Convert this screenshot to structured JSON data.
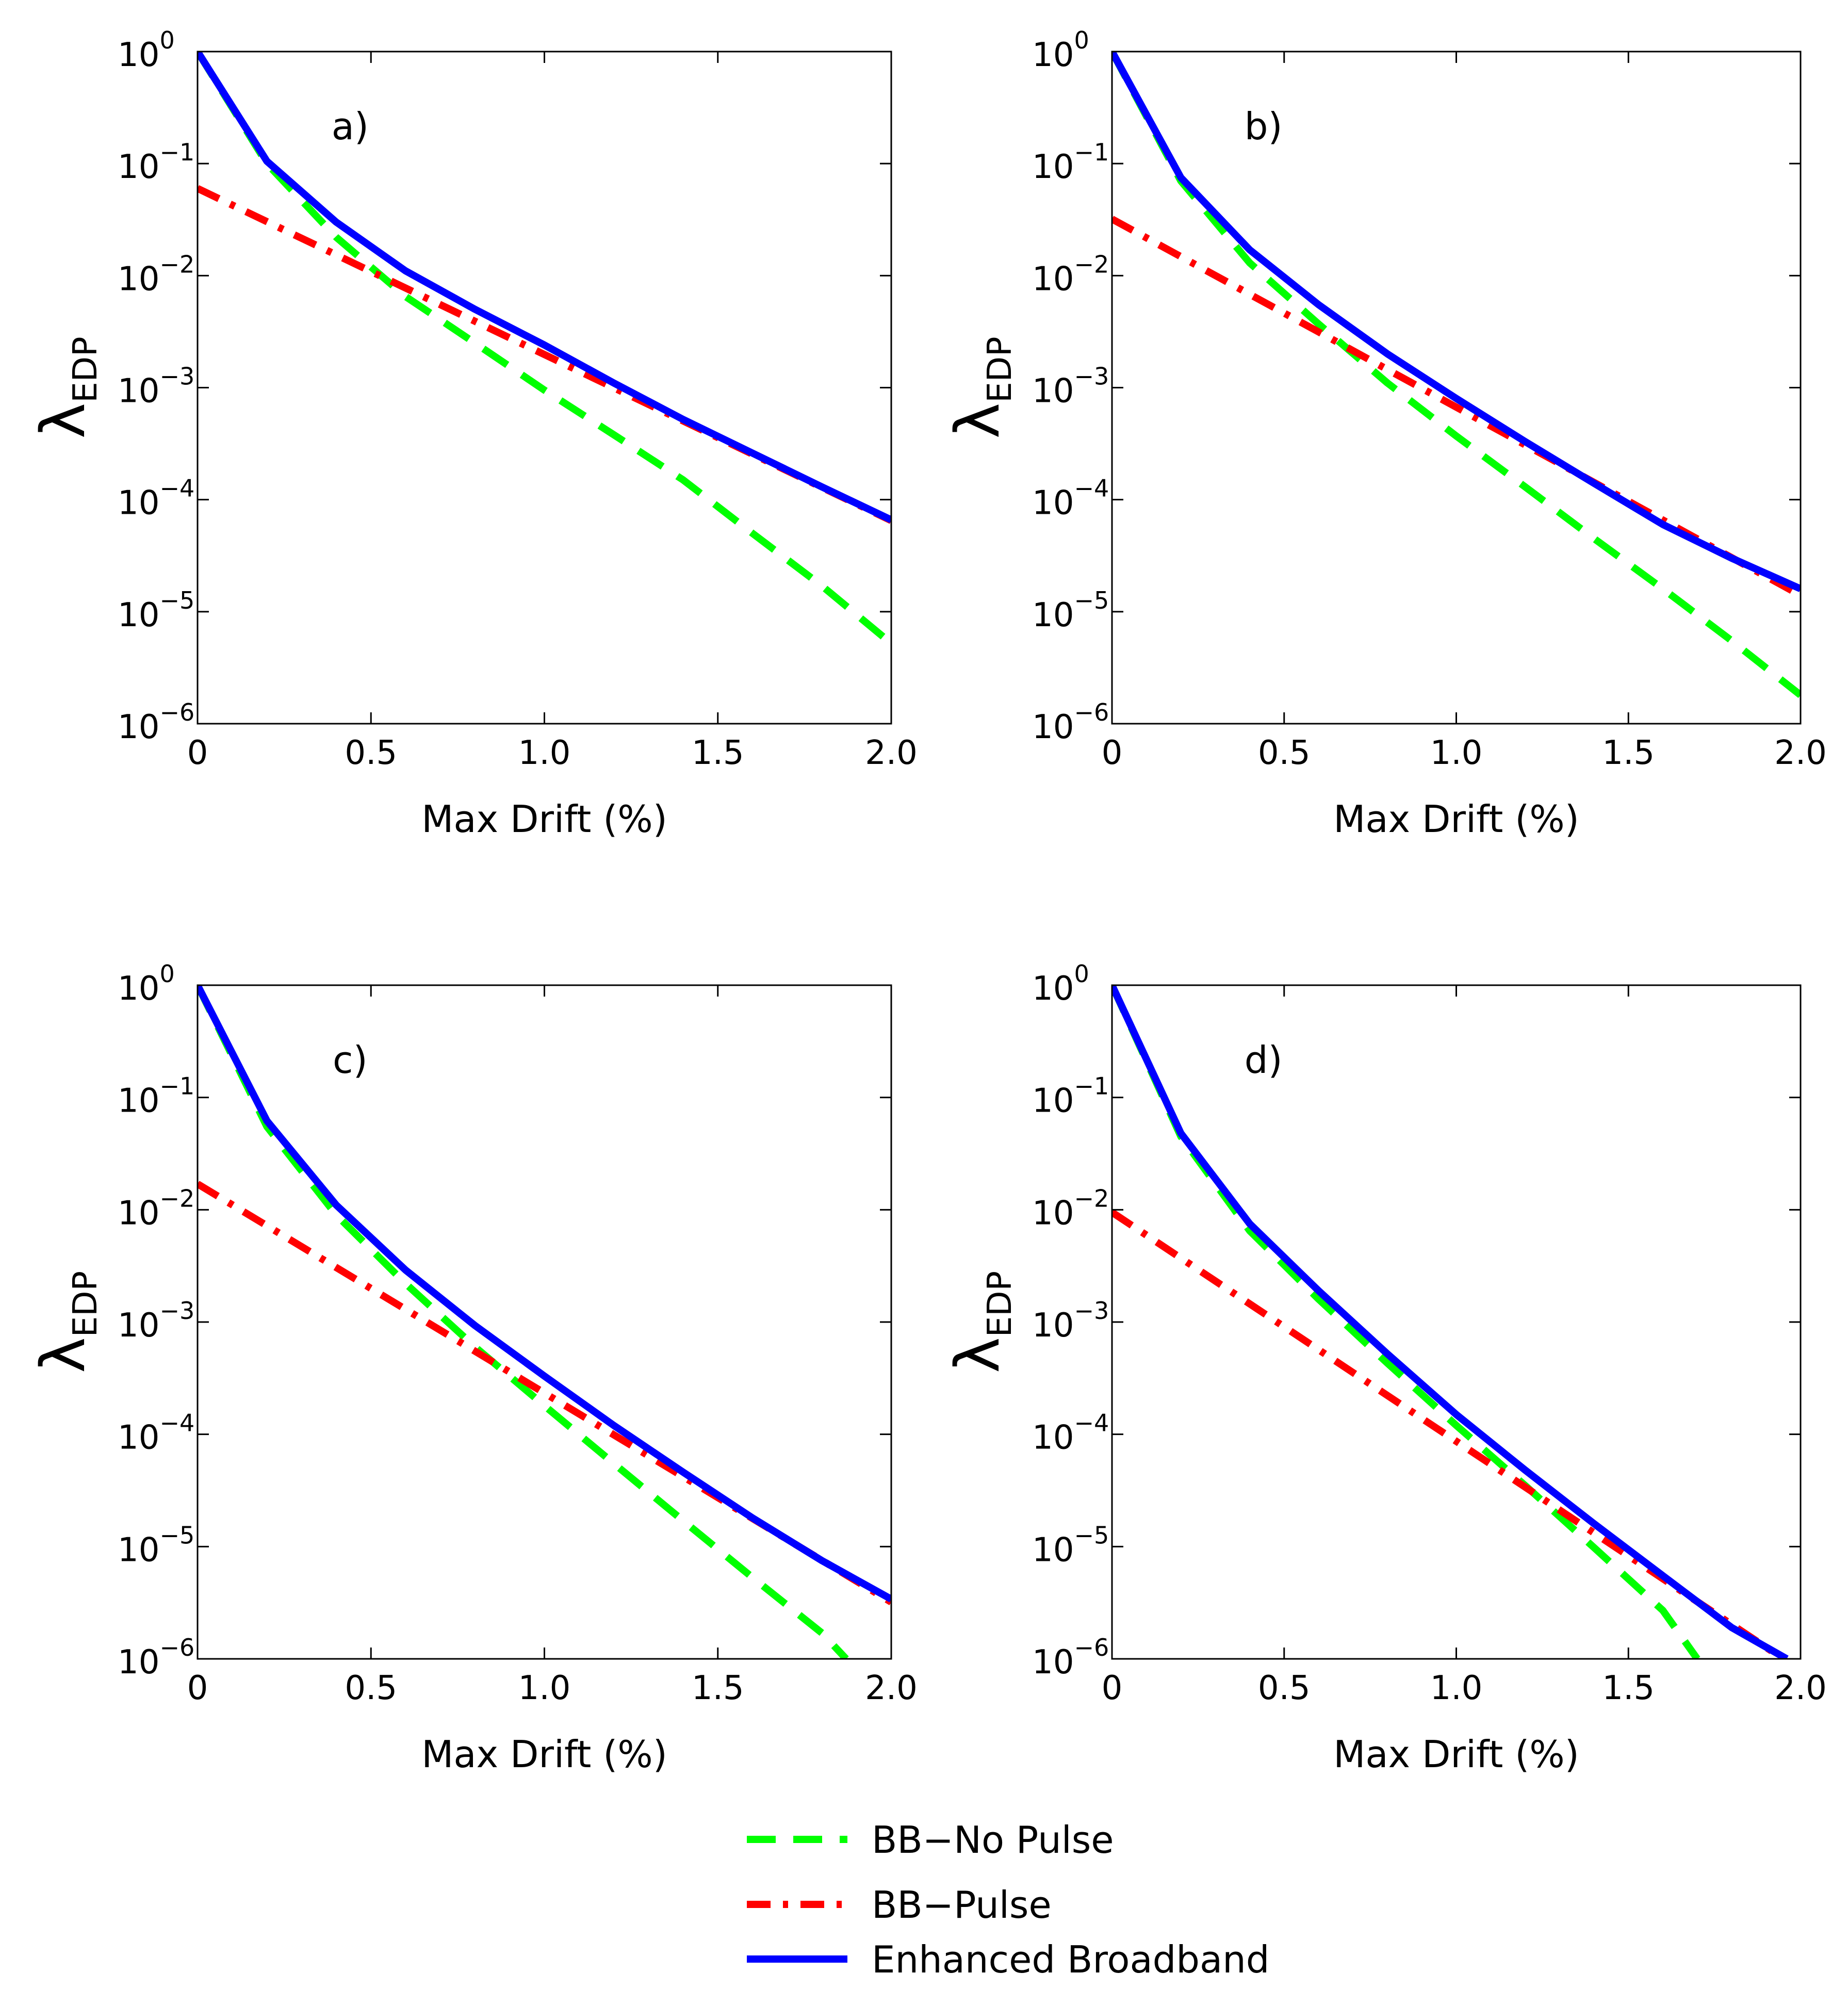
{
  "chart_data": {
    "type": "line",
    "y_scale": "log",
    "grid": false,
    "legend_position": "bottom-center",
    "legend": [
      {
        "key": "no_pulse",
        "label": "BB−No Pulse",
        "color": "#00ff00",
        "style": "dashed"
      },
      {
        "key": "pulse",
        "label": "BB−Pulse",
        "color": "#ff0000",
        "style": "dash-dot"
      },
      {
        "key": "enhanced",
        "label": "Enhanced Broadband",
        "color": "#0000ff",
        "style": "solid"
      }
    ],
    "panels": [
      {
        "label": "a)",
        "xlabel": "Max Drift (%)",
        "ylabel": "λ",
        "ylabel_sub": "EDP",
        "xlim": [
          0,
          2.0
        ],
        "ylim": [
          1e-06,
          1
        ],
        "xticks": [
          0,
          0.5,
          1.0,
          1.5,
          2.0
        ],
        "xtick_labels": [
          "0",
          "0.5",
          "1.0",
          "1.5",
          "2.0"
        ],
        "yticks": [
          1,
          0.1,
          0.01,
          0.001,
          0.0001,
          1e-05,
          1e-06
        ],
        "ytick_bases": [
          "10",
          "10",
          "10",
          "10",
          "10",
          "10",
          "10"
        ],
        "ytick_exponents": [
          "0",
          "−1",
          "−2",
          "−3",
          "−4",
          "−5",
          "−6"
        ],
        "series": [
          {
            "key": "no_pulse",
            "x": [
              0,
              0.2,
              0.4,
              0.6,
              0.8,
              1.0,
              1.2,
              1.4,
              1.6,
              1.8,
              2.0
            ],
            "y": [
              1,
              0.1,
              0.022,
              0.0065,
              0.0025,
              0.00095,
              0.00038,
              0.00015,
              5e-05,
              1.7e-05,
              5.2e-06
            ]
          },
          {
            "key": "pulse",
            "x": [
              0,
              2.0
            ],
            "y": [
              0.06,
              6.5e-05
            ]
          },
          {
            "key": "enhanced",
            "x": [
              0,
              0.2,
              0.4,
              0.6,
              0.8,
              1.0,
              1.2,
              1.4,
              1.6,
              1.8,
              2.0
            ],
            "y": [
              1,
              0.105,
              0.03,
              0.011,
              0.005,
              0.0024,
              0.0011,
              0.00052,
              0.00026,
              0.00013,
              6.6e-05
            ]
          }
        ]
      },
      {
        "label": "b)",
        "xlabel": "Max Drift (%)",
        "ylabel": "λ",
        "ylabel_sub": "EDP",
        "xlim": [
          0,
          2.0
        ],
        "ylim": [
          1e-06,
          1
        ],
        "xticks": [
          0,
          0.5,
          1.0,
          1.5,
          2.0
        ],
        "xtick_labels": [
          "0",
          "0.5",
          "1.0",
          "1.5",
          "2.0"
        ],
        "yticks": [
          1,
          0.1,
          0.01,
          0.001,
          0.0001,
          1e-05,
          1e-06
        ],
        "ytick_bases": [
          "10",
          "10",
          "10",
          "10",
          "10",
          "10",
          "10"
        ],
        "ytick_exponents": [
          "0",
          "−1",
          "−2",
          "−3",
          "−4",
          "−5",
          "−6"
        ],
        "series": [
          {
            "key": "no_pulse",
            "x": [
              0,
              0.2,
              0.4,
              0.6,
              0.8,
              1.0,
              1.2,
              1.4,
              1.6,
              1.8,
              2.0
            ],
            "y": [
              1,
              0.07,
              0.013,
              0.0037,
              0.0011,
              0.00037,
              0.00013,
              4.5e-05,
              1.6e-05,
              5.5e-06,
              1.8e-06
            ]
          },
          {
            "key": "pulse",
            "x": [
              0,
              2.0
            ],
            "y": [
              0.032,
              1.4e-05
            ]
          },
          {
            "key": "enhanced",
            "x": [
              0,
              0.2,
              0.4,
              0.6,
              0.8,
              1.0,
              1.2,
              1.4,
              1.6,
              1.8,
              2.0
            ],
            "y": [
              1,
              0.075,
              0.017,
              0.0055,
              0.002,
              0.0008,
              0.00033,
              0.00014,
              6e-05,
              3e-05,
              1.6e-05
            ]
          }
        ]
      },
      {
        "label": "c)",
        "xlabel": "Max Drift (%)",
        "ylabel": "λ",
        "ylabel_sub": "EDP",
        "xlim": [
          0,
          2.0
        ],
        "ylim": [
          1e-06,
          1
        ],
        "xticks": [
          0,
          0.5,
          1.0,
          1.5,
          2.0
        ],
        "xtick_labels": [
          "0",
          "0.5",
          "1.0",
          "1.5",
          "2.0"
        ],
        "yticks": [
          1,
          0.1,
          0.01,
          0.001,
          0.0001,
          1e-05,
          1e-06
        ],
        "ytick_bases": [
          "10",
          "10",
          "10",
          "10",
          "10",
          "10",
          "10"
        ],
        "ytick_exponents": [
          "0",
          "−1",
          "−2",
          "−3",
          "−4",
          "−5",
          "−6"
        ],
        "series": [
          {
            "key": "no_pulse",
            "x": [
              0,
              0.2,
              0.4,
              0.6,
              0.8,
              1.0,
              1.2,
              1.4,
              1.6,
              1.8,
              1.87
            ],
            "y": [
              1,
              0.055,
              0.009,
              0.0022,
              0.0006,
              0.00018,
              5.5e-05,
              1.7e-05,
              5.3e-06,
              1.7e-06,
              1e-06
            ]
          },
          {
            "key": "pulse",
            "x": [
              0,
              2.0
            ],
            "y": [
              0.017,
              3.2e-06
            ]
          },
          {
            "key": "enhanced",
            "x": [
              0,
              0.2,
              0.4,
              0.6,
              0.8,
              1.0,
              1.2,
              1.4,
              1.6,
              1.8,
              2.0
            ],
            "y": [
              1,
              0.062,
              0.011,
              0.0029,
              0.00093,
              0.00033,
              0.00012,
              4.6e-05,
              1.8e-05,
              7.5e-06,
              3.4e-06
            ]
          }
        ]
      },
      {
        "label": "d)",
        "xlabel": "Max Drift (%)",
        "ylabel": "λ",
        "ylabel_sub": "EDP",
        "xlim": [
          0,
          2.0
        ],
        "ylim": [
          1e-06,
          1
        ],
        "xticks": [
          0,
          0.5,
          1.0,
          1.5,
          2.0
        ],
        "xtick_labels": [
          "0",
          "0.5",
          "1.0",
          "1.5",
          "2.0"
        ],
        "yticks": [
          1,
          0.1,
          0.01,
          0.001,
          0.0001,
          1e-05,
          1e-06
        ],
        "ytick_bases": [
          "10",
          "10",
          "10",
          "10",
          "10",
          "10",
          "10"
        ],
        "ytick_exponents": [
          "0",
          "−1",
          "−2",
          "−3",
          "−4",
          "−5",
          "−6"
        ],
        "series": [
          {
            "key": "no_pulse",
            "x": [
              0,
              0.2,
              0.4,
              0.6,
              0.8,
              1.0,
              1.2,
              1.4,
              1.6,
              1.7
            ],
            "y": [
              1,
              0.045,
              0.0065,
              0.0016,
              0.00043,
              0.00012,
              3.5e-05,
              9.8e-06,
              2.7e-06,
              1e-06
            ]
          },
          {
            "key": "pulse",
            "x": [
              0,
              1.95
            ],
            "y": [
              0.0095,
              1e-06
            ]
          },
          {
            "key": "enhanced",
            "x": [
              0,
              0.2,
              0.4,
              0.6,
              0.8,
              1.0,
              1.2,
              1.4,
              1.6,
              1.8,
              1.96
            ],
            "y": [
              1,
              0.048,
              0.0075,
              0.0019,
              0.00052,
              0.00015,
              4.8e-05,
              1.6e-05,
              5.5e-06,
              1.9e-06,
              1e-06
            ]
          }
        ]
      }
    ]
  }
}
